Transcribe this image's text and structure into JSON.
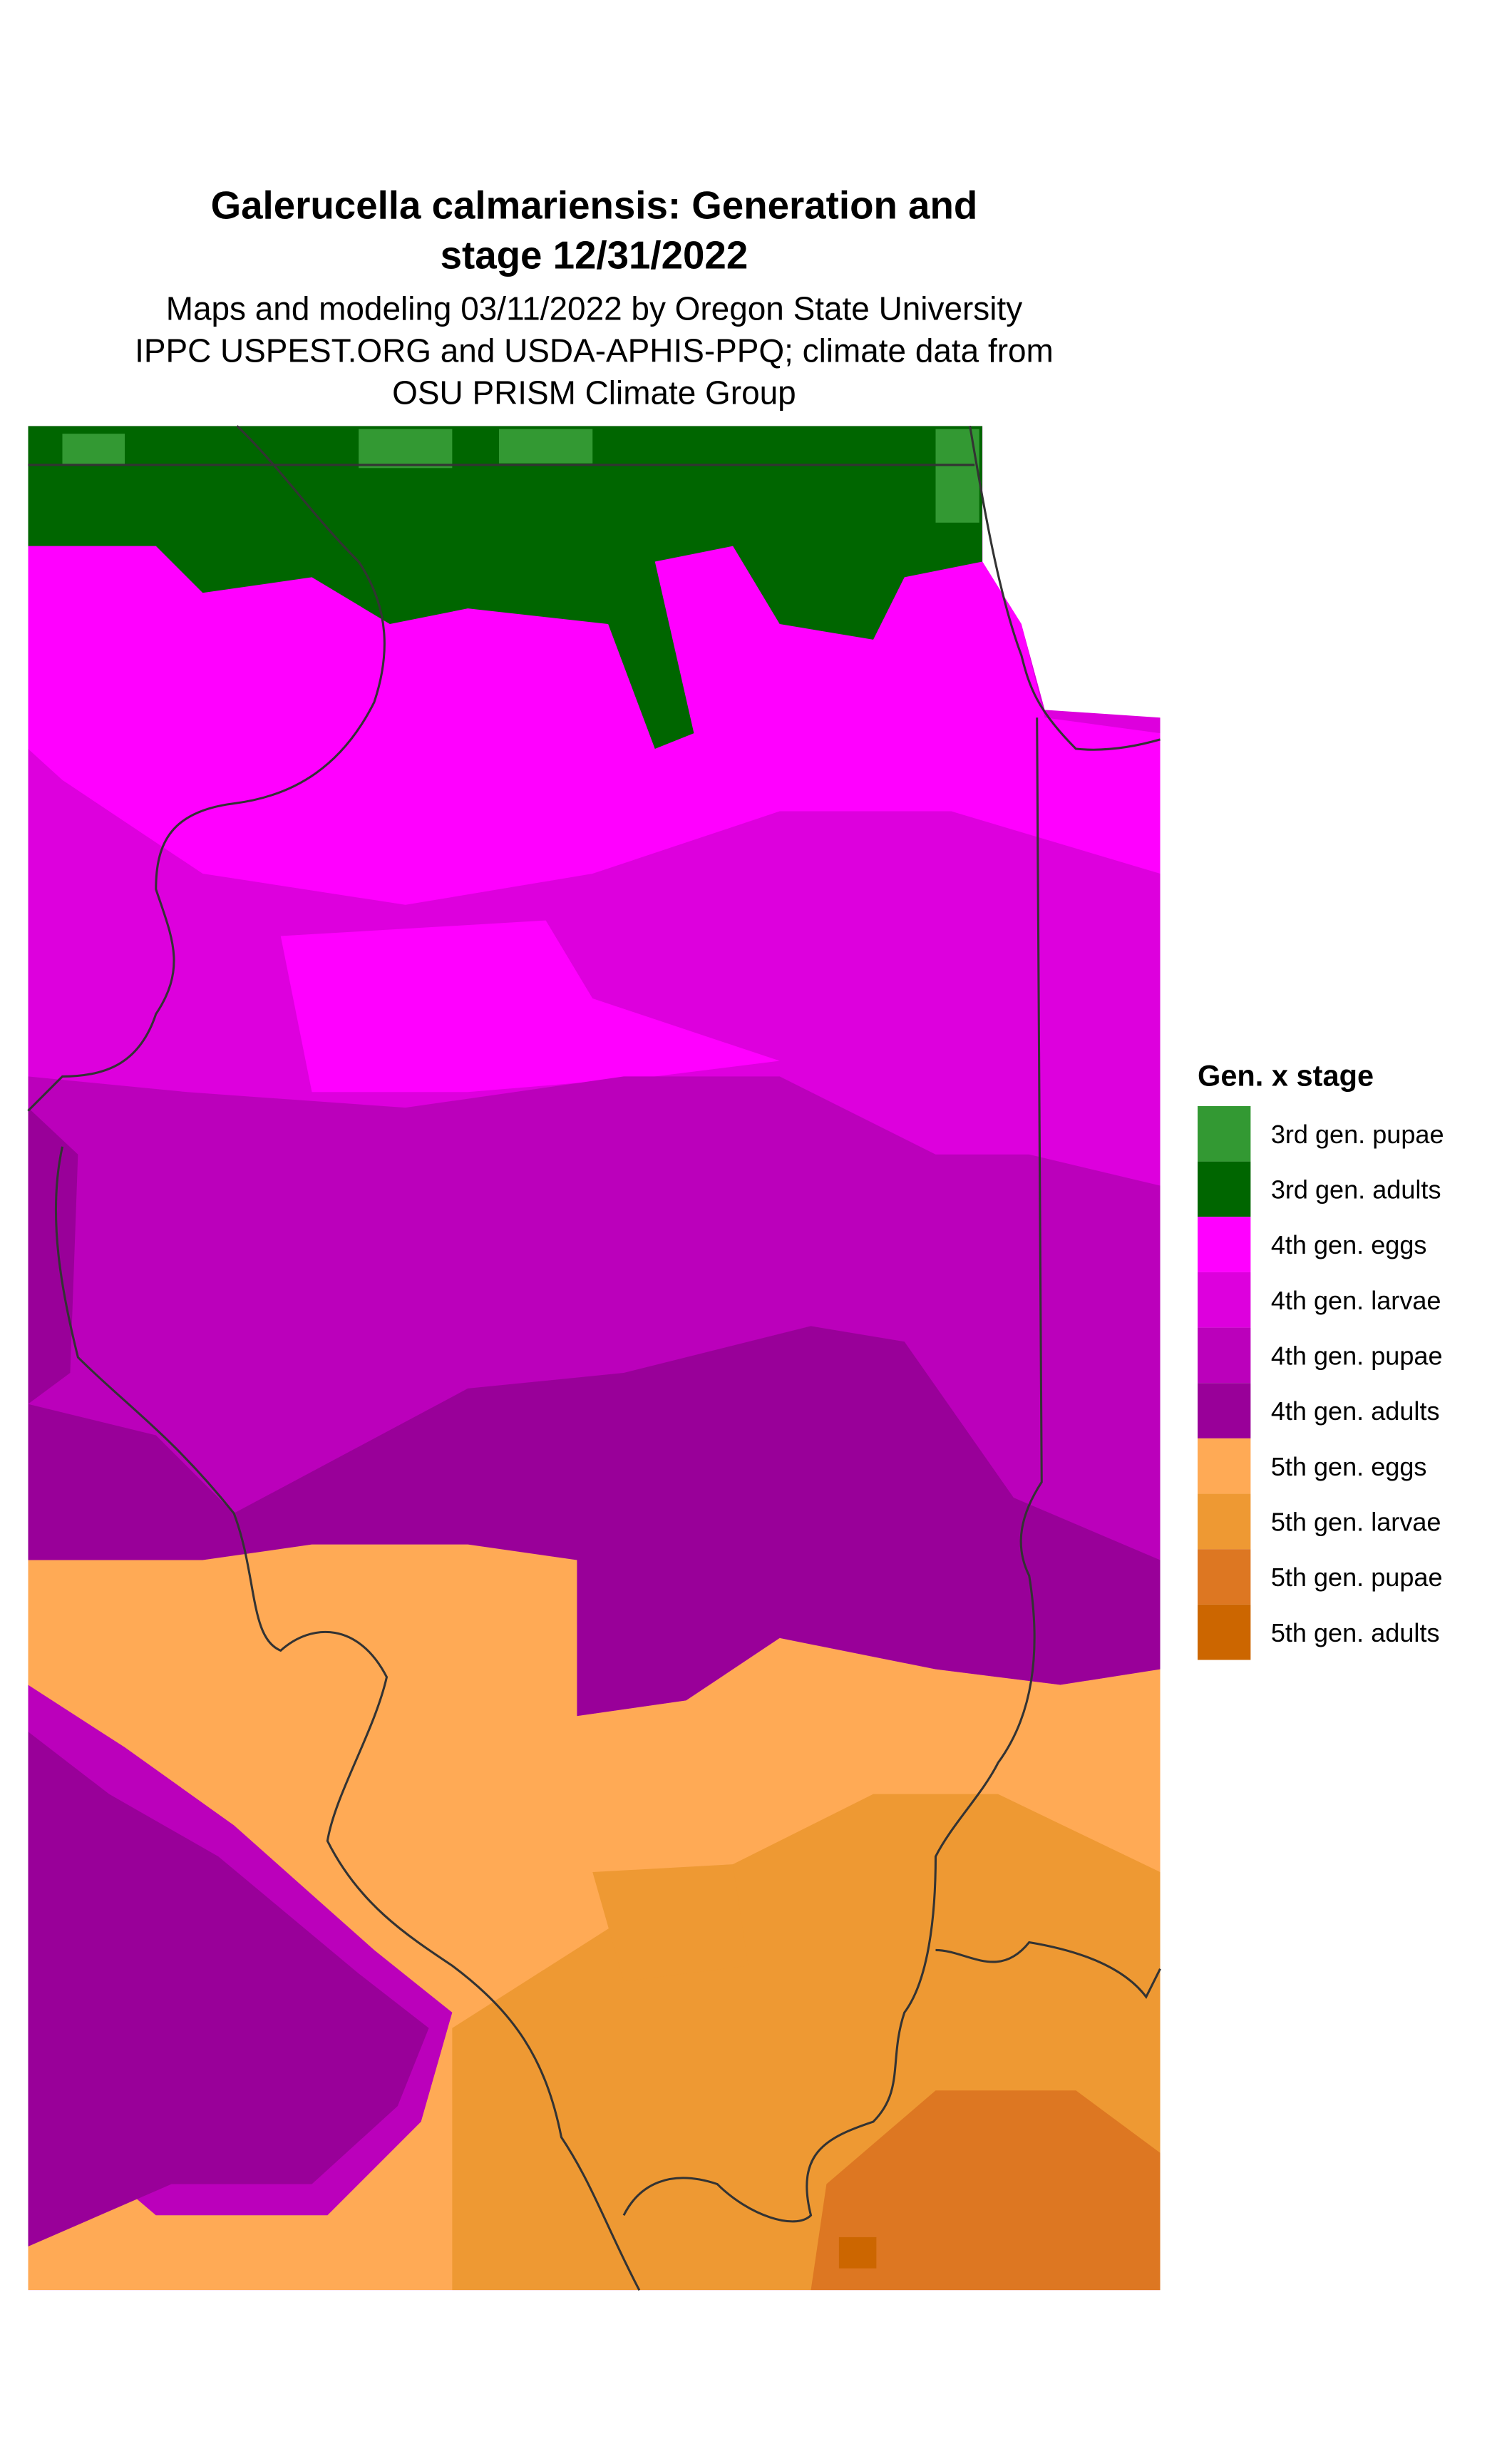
{
  "title": [
    "Galerucella calmariensis: Generation and",
    "stage 12/31/2022"
  ],
  "subtitle": [
    "Maps and modeling 03/11/2022 by Oregon State University",
    "IPPC USPEST.ORG and USDA-APHIS-PPQ; climate data from",
    "OSU PRISM Climate Group"
  ],
  "legend": {
    "title": "Gen. x stage",
    "items": [
      {
        "label": "3rd gen. pupae",
        "color": "#339933"
      },
      {
        "label": "3rd gen. adults",
        "color": "#006600"
      },
      {
        "label": "4th gen. eggs",
        "color": "#ff00ff"
      },
      {
        "label": "4th gen. larvae",
        "color": "#dd00dd"
      },
      {
        "label": "4th gen. pupae",
        "color": "#bb00bb"
      },
      {
        "label": "4th gen. adults",
        "color": "#990099"
      },
      {
        "label": "5th gen. eggs",
        "color": "#ffaa55"
      },
      {
        "label": "5th gen. larvae",
        "color": "#ee9933"
      },
      {
        "label": "5th gen. pupae",
        "color": "#dd7722"
      },
      {
        "label": "5th gen. adults",
        "color": "#cc6600"
      }
    ]
  }
}
